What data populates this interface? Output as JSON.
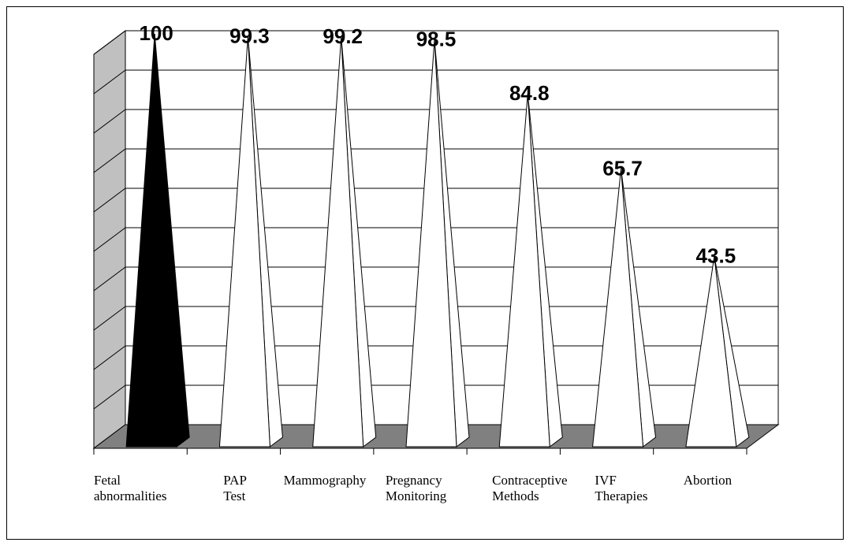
{
  "chart_data": {
    "type": "bar",
    "style": "3d-cone",
    "title": "",
    "xlabel": "",
    "ylabel": "",
    "ylim": [
      0,
      100
    ],
    "grid": true,
    "legend": "none",
    "categories": [
      [
        "Fetal",
        "abnormalities"
      ],
      [
        "PAP",
        "Test"
      ],
      [
        "Mammography"
      ],
      [
        "Pregnancy",
        "Monitoring"
      ],
      [
        "Contraceptive",
        "Methods"
      ],
      [
        "IVF",
        "Therapies"
      ],
      [
        "Abortion"
      ]
    ],
    "values": [
      100,
      99.3,
      99.2,
      98.5,
      84.8,
      65.7,
      43.5
    ],
    "value_labels": [
      "100",
      "99.3",
      "99.2",
      "98.5",
      "84.8",
      "65.7",
      "43.5"
    ],
    "colors": {
      "highlight_bar": "#000000",
      "bar": "#ffffff",
      "floor": "#808080",
      "side_wall": "#c0c0c0",
      "grid": "#000000"
    }
  }
}
